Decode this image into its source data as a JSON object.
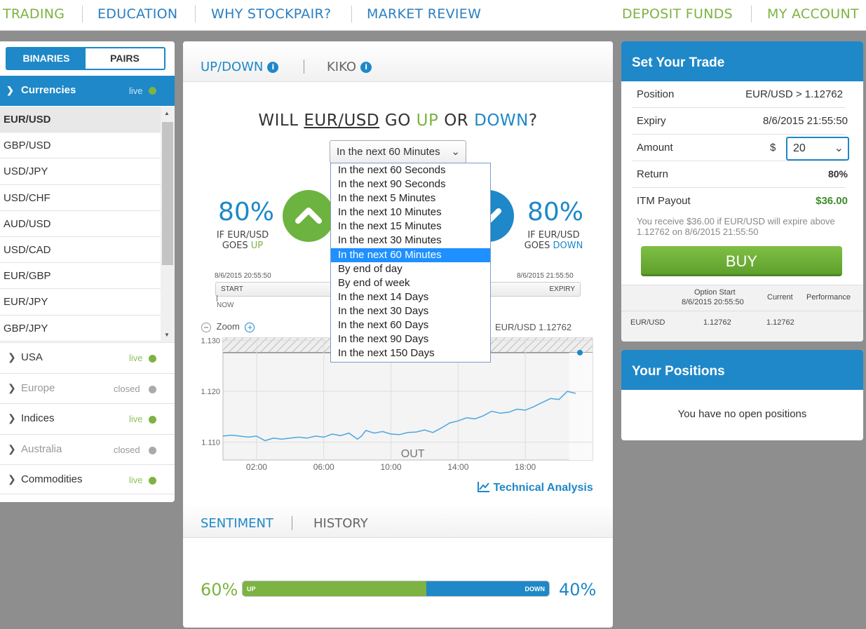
{
  "nav": {
    "trading": "TRADING",
    "education": "EDUCATION",
    "why": "WHY STOCKPAIR?",
    "market_review": "MARKET REVIEW",
    "deposit": "DEPOSIT FUNDS",
    "account": "MY ACCOUNT"
  },
  "left": {
    "toggle": {
      "binaries": "BINARIES",
      "pairs": "PAIRS"
    },
    "category": {
      "label": "Currencies",
      "status": "live"
    },
    "pairs": [
      "EUR/USD",
      "GBP/USD",
      "USD/JPY",
      "USD/CHF",
      "AUD/USD",
      "USD/CAD",
      "EUR/GBP",
      "EUR/JPY",
      "GBP/JPY"
    ],
    "markets": [
      {
        "label": "USA",
        "status": "live"
      },
      {
        "label": "Europe",
        "status": "closed"
      },
      {
        "label": "Indices",
        "status": "live"
      },
      {
        "label": "Australia",
        "status": "closed"
      },
      {
        "label": "Commodities",
        "status": "live"
      }
    ]
  },
  "center": {
    "tabs": {
      "updown": "UP/DOWN",
      "kiko": "KIKO"
    },
    "question": {
      "will": "WILL",
      "asset": "EUR/USD",
      "go": "GO",
      "up": "UP",
      "or": "OR",
      "down": "DOWN",
      "q": "?"
    },
    "expiry_select": "In the next 60 Minutes",
    "up_pct": "80%",
    "up_sub1": "IF EUR/USD",
    "up_sub2_a": "GOES ",
    "up_sub2_b": "UP",
    "down_pct": "80%",
    "down_sub1": "IF EUR/USD",
    "down_sub2_a": "GOES ",
    "down_sub2_b": "DOWN",
    "start_time": "8/6/2015 20:55:50",
    "expiry_time": "8/6/2015 21:55:50",
    "start_label": "START",
    "expiry_label": "EXPIRY",
    "now_label": "NOW",
    "zoom_label": "Zoom",
    "chart_label": "EUR/USD 1.12762",
    "technical": "Technical Analysis",
    "bottom_tabs": {
      "sentiment": "SENTIMENT",
      "history": "HISTORY"
    },
    "sentiment": {
      "up_pct": "60%",
      "down_pct": "40%",
      "up_label": "UP",
      "down_label": "DOWN",
      "up_value": 0.6
    }
  },
  "dropdown_options": [
    "In the next 60 Seconds",
    "In the next 90 Seconds",
    "In the next 5 Minutes",
    "In the next 10 Minutes",
    "In the next 15 Minutes",
    "In the next 30 Minutes",
    "In the next 60 Minutes",
    "By end of day",
    "By end of week",
    "In the next 14 Days",
    "In the next 30 Days",
    "In the next 60 Days",
    "In the next 90 Days",
    "In the next 150 Days"
  ],
  "trade": {
    "title": "Set Your Trade",
    "position_k": "Position",
    "position_v": "EUR/USD > 1.12762",
    "expiry_k": "Expiry",
    "expiry_v": "8/6/2015 21:55:50",
    "amount_k": "Amount",
    "currency": "$",
    "amount_v": "20",
    "return_k": "Return",
    "return_v": "80%",
    "payout_k": "ITM Payout",
    "payout_v": "$36.00",
    "note": "You receive $36.00 if EUR/USD will expire above 1.12762 on 8/6/2015 21:55:50",
    "buy": "BUY",
    "table": {
      "h_option_start": "Option Start",
      "h_start_time": "8/6/2015 20:55:50",
      "h_current": "Current",
      "h_performance": "Performance",
      "asset": "EUR/USD",
      "start": "1.12762",
      "current": "1.12762"
    }
  },
  "positions": {
    "title": "Your Positions",
    "empty": "You have no open positions"
  },
  "colors": {
    "green": "#7cb342",
    "blue": "#1e88c8",
    "live_dot": "#7cb342",
    "closed_dot": "#aaaaaa"
  },
  "chart_data": {
    "type": "line",
    "x_ticks": [
      "02:00",
      "06:00",
      "10:00",
      "14:00",
      "18:00"
    ],
    "y_ticks": [
      "1.110",
      "1.120",
      "1.130"
    ],
    "ylim": [
      1.1065,
      1.1305
    ],
    "annotation": "OUT",
    "series": [
      {
        "x": [
          0,
          0.5,
          1,
          1.5,
          2,
          2.5,
          3,
          3.5,
          4,
          4.5,
          5,
          5.5,
          6,
          6.5,
          7,
          7.5,
          8,
          8.25,
          8.5,
          9,
          9.5,
          10,
          10.5,
          11,
          11.5,
          12,
          12.5,
          13,
          13.5,
          14,
          14.5,
          15,
          15.5,
          16,
          16.5,
          17,
          17.5,
          18,
          18.5,
          19,
          19.5,
          20,
          20.5,
          21
        ],
        "y": [
          1.1112,
          1.1114,
          1.1112,
          1.111,
          1.1112,
          1.1103,
          1.1108,
          1.1106,
          1.1108,
          1.111,
          1.1108,
          1.1112,
          1.111,
          1.1116,
          1.1113,
          1.1118,
          1.1106,
          1.1112,
          1.1123,
          1.1118,
          1.1121,
          1.1116,
          1.1115,
          1.1119,
          1.112,
          1.1124,
          1.1119,
          1.1128,
          1.1138,
          1.1142,
          1.1148,
          1.1146,
          1.1152,
          1.1161,
          1.1157,
          1.1159,
          1.1165,
          1.1163,
          1.117,
          1.1178,
          1.1186,
          1.1184,
          1.12,
          1.1196
        ]
      }
    ],
    "current_value": 1.12762
  }
}
